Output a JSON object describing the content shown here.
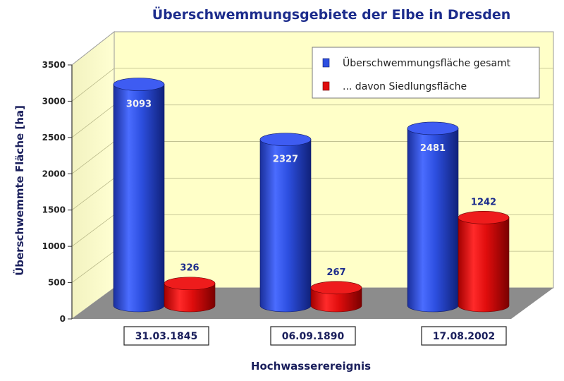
{
  "chart_data": {
    "type": "bar",
    "title": "Überschwemmungsgebiete der Elbe in Dresden",
    "xlabel": "Hochwasserereignis",
    "ylabel": "Überschwemmte Fläche [ha]",
    "ylim": [
      0,
      3500
    ],
    "yticks": [
      0,
      500,
      1000,
      1500,
      2000,
      2500,
      3000,
      3500
    ],
    "categories": [
      "31.03.1845",
      "06.09.1890",
      "17.08.2002"
    ],
    "series": [
      {
        "name": "Überschwemmungsfläche gesamt",
        "values": [
          3093,
          2327,
          2481
        ],
        "color": "#2d4fe0"
      },
      {
        "name": "... davon Siedlungsfläche",
        "values": [
          326,
          267,
          1242
        ],
        "color": "#e00d0d"
      }
    ],
    "legend_position": "top-right",
    "colors": {
      "title": "#1c2c8c",
      "axis_label": "#1a1f5c",
      "back_wall": "#ffffc8",
      "floor": "#8c8c8c"
    }
  }
}
